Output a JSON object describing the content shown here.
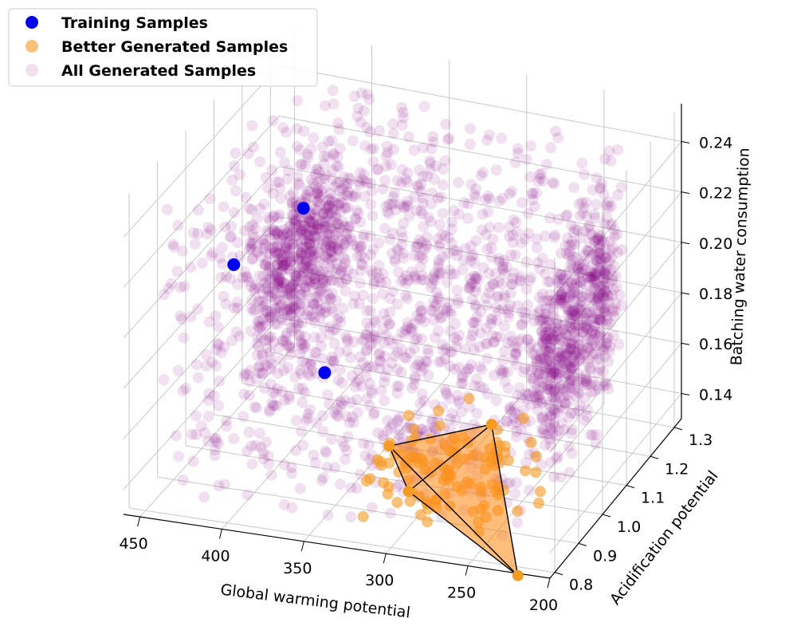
{
  "chart_data": {
    "type": "scatter",
    "projection": "3d",
    "title": "",
    "axes": {
      "x": {
        "label": "Global warming potential",
        "lim": [
          460,
          200
        ],
        "ticks": [
          "450",
          "400",
          "350",
          "300",
          "250",
          "200"
        ]
      },
      "y": {
        "label": "Acidification potential",
        "lim": [
          0.78,
          1.33
        ],
        "ticks": [
          "0.8",
          "0.9",
          "1.0",
          "1.1",
          "1.2",
          "1.3"
        ]
      },
      "z": {
        "label": "Batching water consumption",
        "lim": [
          0.13,
          0.255
        ],
        "ticks": [
          "0.14",
          "0.16",
          "0.18",
          "0.20",
          "0.22",
          "0.24"
        ]
      }
    },
    "grid": true,
    "legend": {
      "position": "top-left",
      "entries": [
        "Training Samples",
        "Better Generated Samples",
        "All Generated Samples"
      ]
    },
    "series": [
      {
        "name": "Training Samples",
        "color": "#0000ee",
        "alpha": 1.0,
        "points": [
          {
            "x": 395,
            "y": 1.05,
            "z": 0.225
          },
          {
            "x": 430,
            "y": 1.0,
            "z": 0.205
          },
          {
            "x": 365,
            "y": 0.95,
            "z": 0.175
          }
        ]
      },
      {
        "name": "Better Generated Samples",
        "color": "#f59a23",
        "alpha": 0.6,
        "points": "approx. 100 samples clustered in x 240–330, y 0.85–1.05, z 0.13–0.165"
      },
      {
        "name": "All Generated Samples",
        "color": "#800080",
        "alpha": 0.12,
        "points": "approx. 3000 samples spanning x 220–450, y 0.8–1.3, z 0.13–0.25"
      }
    ],
    "convex_hull": {
      "series": "Better Generated Samples",
      "fill": "#ff8c1a",
      "edge": "#000000",
      "vertices": [
        {
          "x": 325,
          "y": 0.95,
          "z": 0.15
        },
        {
          "x": 285,
          "y": 1.1,
          "z": 0.145
        },
        {
          "x": 305,
          "y": 0.9,
          "z": 0.14
        },
        {
          "x": 230,
          "y": 0.85,
          "z": 0.12
        }
      ]
    }
  }
}
